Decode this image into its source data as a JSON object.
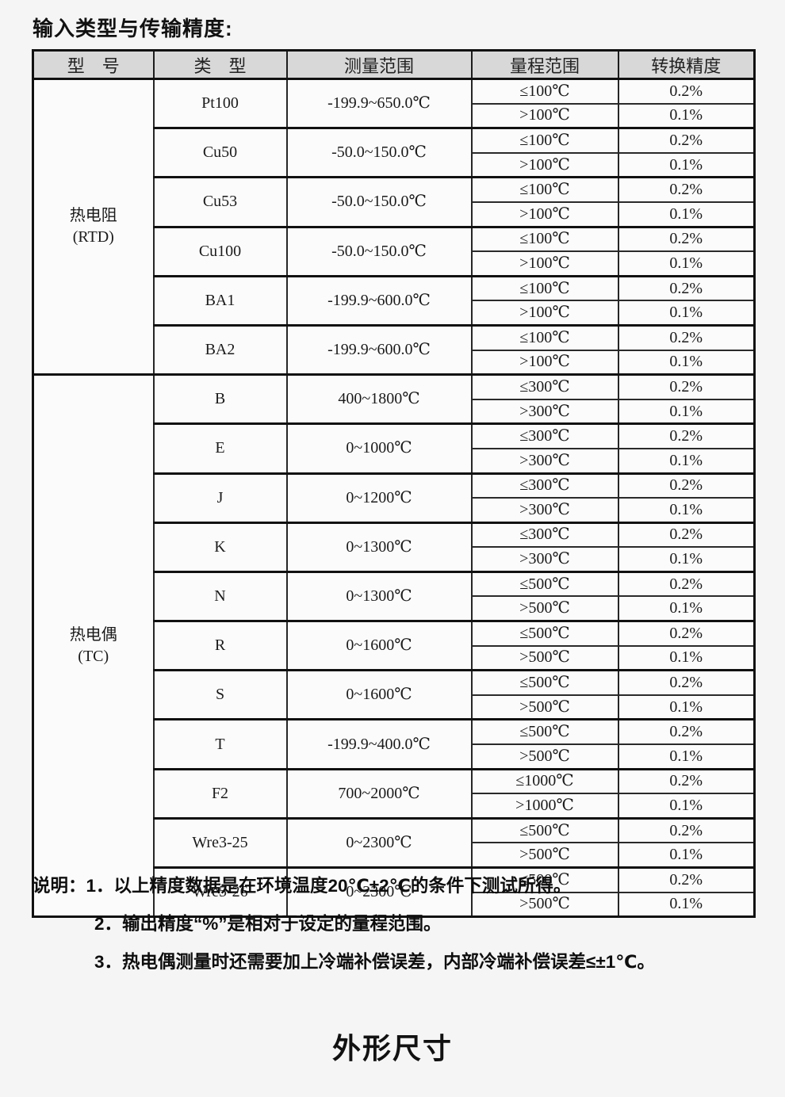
{
  "page": {
    "title": "输入类型与传输精度:",
    "section_title": "外形尺寸"
  },
  "colors": {
    "page_bg": "#f5f5f5",
    "table_header_bg": "#d8d8d8",
    "table_bg": "#fbfbfb",
    "border": "#111111",
    "text": "#1a1a1a"
  },
  "table": {
    "columns": [
      "型　号",
      "类　型",
      "测量范围",
      "量程范围",
      "转换精度"
    ],
    "groups": [
      {
        "label": "热电阻",
        "sublabel": "(RTD)",
        "types": [
          {
            "type": "Pt100",
            "range": "-199.9~650.0℃",
            "rows": [
              {
                "span": "≤100℃",
                "acc": "0.2%"
              },
              {
                "span": ">100℃",
                "acc": "0.1%"
              }
            ]
          },
          {
            "type": "Cu50",
            "range": "-50.0~150.0℃",
            "rows": [
              {
                "span": "≤100℃",
                "acc": "0.2%"
              },
              {
                "span": ">100℃",
                "acc": "0.1%"
              }
            ]
          },
          {
            "type": "Cu53",
            "range": "-50.0~150.0℃",
            "rows": [
              {
                "span": "≤100℃",
                "acc": "0.2%"
              },
              {
                "span": ">100℃",
                "acc": "0.1%"
              }
            ]
          },
          {
            "type": "Cu100",
            "range": "-50.0~150.0℃",
            "rows": [
              {
                "span": "≤100℃",
                "acc": "0.2%"
              },
              {
                "span": ">100℃",
                "acc": "0.1%"
              }
            ]
          },
          {
            "type": "BA1",
            "range": "-199.9~600.0℃",
            "rows": [
              {
                "span": "≤100℃",
                "acc": "0.2%"
              },
              {
                "span": ">100℃",
                "acc": "0.1%"
              }
            ]
          },
          {
            "type": "BA2",
            "range": "-199.9~600.0℃",
            "rows": [
              {
                "span": "≤100℃",
                "acc": "0.2%"
              },
              {
                "span": ">100℃",
                "acc": "0.1%"
              }
            ]
          }
        ]
      },
      {
        "label": "热电偶",
        "sublabel": "(TC)",
        "types": [
          {
            "type": "B",
            "range": "400~1800℃",
            "rows": [
              {
                "span": "≤300℃",
                "acc": "0.2%"
              },
              {
                "span": ">300℃",
                "acc": "0.1%"
              }
            ]
          },
          {
            "type": "E",
            "range": "0~1000℃",
            "rows": [
              {
                "span": "≤300℃",
                "acc": "0.2%"
              },
              {
                "span": ">300℃",
                "acc": "0.1%"
              }
            ]
          },
          {
            "type": "J",
            "range": "0~1200℃",
            "rows": [
              {
                "span": "≤300℃",
                "acc": "0.2%"
              },
              {
                "span": ">300℃",
                "acc": "0.1%"
              }
            ]
          },
          {
            "type": "K",
            "range": "0~1300℃",
            "rows": [
              {
                "span": "≤300℃",
                "acc": "0.2%"
              },
              {
                "span": ">300℃",
                "acc": "0.1%"
              }
            ]
          },
          {
            "type": "N",
            "range": "0~1300℃",
            "rows": [
              {
                "span": "≤500℃",
                "acc": "0.2%"
              },
              {
                "span": ">500℃",
                "acc": "0.1%"
              }
            ]
          },
          {
            "type": "R",
            "range": "0~1600℃",
            "rows": [
              {
                "span": "≤500℃",
                "acc": "0.2%"
              },
              {
                "span": ">500℃",
                "acc": "0.1%"
              }
            ]
          },
          {
            "type": "S",
            "range": "0~1600℃",
            "rows": [
              {
                "span": "≤500℃",
                "acc": "0.2%"
              },
              {
                "span": ">500℃",
                "acc": "0.1%"
              }
            ]
          },
          {
            "type": "T",
            "range": "-199.9~400.0℃",
            "rows": [
              {
                "span": "≤500℃",
                "acc": "0.2%"
              },
              {
                "span": ">500℃",
                "acc": "0.1%"
              }
            ]
          },
          {
            "type": "F2",
            "range": "700~2000℃",
            "rows": [
              {
                "span": "≤1000℃",
                "acc": "0.2%"
              },
              {
                "span": ">1000℃",
                "acc": "0.1%"
              }
            ]
          },
          {
            "type": "Wre3-25",
            "range": "0~2300℃",
            "rows": [
              {
                "span": "≤500℃",
                "acc": "0.2%"
              },
              {
                "span": ">500℃",
                "acc": "0.1%"
              }
            ]
          },
          {
            "type": "Wre5-26",
            "range": "0~2300℃",
            "rows": [
              {
                "span": "≤500℃",
                "acc": "0.2%"
              },
              {
                "span": ">500℃",
                "acc": "0.1%"
              }
            ]
          }
        ]
      }
    ]
  },
  "notes": {
    "label": "说明：",
    "items": [
      "1．以上精度数据是在环境温度20℃±2℃的条件下测试所得。",
      "2．输出精度“%”是相对于设定的量程范围。",
      "3．热电偶测量时还需要加上冷端补偿误差，内部冷端补偿误差≤±1℃。"
    ]
  }
}
